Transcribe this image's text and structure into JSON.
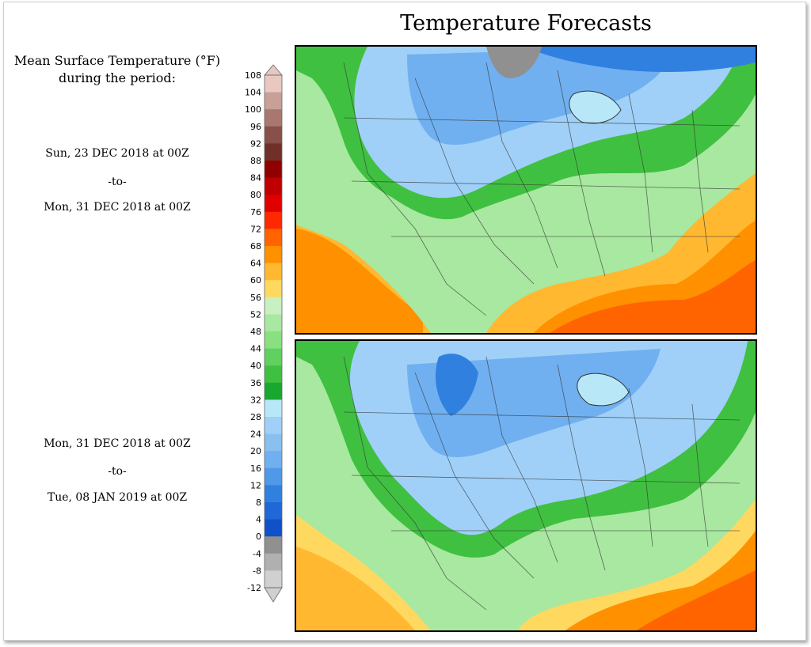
{
  "title": "Temperature Forecasts",
  "legend": {
    "title_line1": "Mean Surface Temperature (°F)",
    "title_line2": "during the period:",
    "unit": "°F",
    "ticks": [
      "108",
      "104",
      "100",
      "96",
      "92",
      "88",
      "84",
      "80",
      "76",
      "72",
      "68",
      "64",
      "60",
      "56",
      "52",
      "48",
      "44",
      "40",
      "36",
      "32",
      "28",
      "24",
      "20",
      "16",
      "12",
      "8",
      "4",
      "0",
      "-4",
      "-8",
      "-12"
    ],
    "colors": [
      "#e8c8c0",
      "#c8a098",
      "#a87870",
      "#885048",
      "#703028",
      "#900000",
      "#c00000",
      "#e00000",
      "#ff2800",
      "#ff6400",
      "#ff9000",
      "#ffb830",
      "#ffd860",
      "#c8f0c0",
      "#a8e8a0",
      "#88e080",
      "#60d060",
      "#40c040",
      "#18a830",
      "#b8e8f8",
      "#a0d0f8",
      "#88c0f0",
      "#70b0f0",
      "#5098e8",
      "#3080e0",
      "#2068d8",
      "#1050c8",
      "#909090",
      "#b0b0b0",
      "#d0d0d0"
    ]
  },
  "panels": [
    {
      "start_label": "Sun, 23 DEC 2018 at 00Z",
      "separator": "-to-",
      "end_label": "Mon, 31 DEC 2018 at 00Z"
    },
    {
      "start_label": "Mon, 31 DEC 2018 at 00Z",
      "separator": "-to-",
      "end_label": "Tue, 08 JAN 2019 at 00Z"
    }
  ]
}
